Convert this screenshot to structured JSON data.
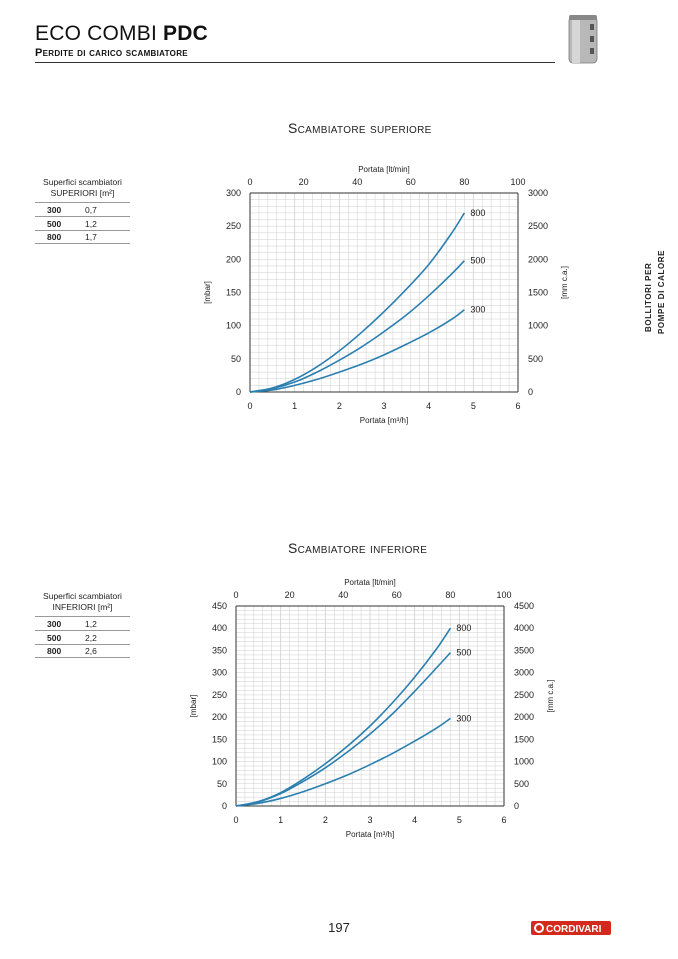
{
  "header": {
    "title_main": "ECO COMBI",
    "title_bold": "PDC",
    "subtitle": "Perdite di carico scambiatore"
  },
  "side_tab": {
    "line1": "BOLLITORI PER",
    "line2": "POMPE DI CALORE"
  },
  "legend_upper": {
    "head_line1": "Superfici scambiatori",
    "head_line2": "SUPERIORI [m²]",
    "rows": [
      {
        "model": "300",
        "area": "0,7"
      },
      {
        "model": "500",
        "area": "1,2"
      },
      {
        "model": "800",
        "area": "1,7"
      }
    ]
  },
  "legend_lower": {
    "head_line1": "Superfici scambiatori",
    "head_line2": "INFERIORI [m²]",
    "rows": [
      {
        "model": "300",
        "area": "1,2"
      },
      {
        "model": "500",
        "area": "2,2"
      },
      {
        "model": "800",
        "area": "2,6"
      }
    ]
  },
  "chart_data": [
    {
      "type": "line",
      "title": "Scambiatore superiore",
      "xlabel": "Portata [m³/h]",
      "x2label": "Portata [lt/min]",
      "ylabel": "[mbar]",
      "y2label": "[mm c.a.]",
      "xlim": [
        0,
        6
      ],
      "ylim": [
        0,
        300
      ],
      "x_ticks": [
        0,
        1,
        2,
        3,
        4,
        5,
        6
      ],
      "x2_ticks": [
        0,
        20,
        40,
        60,
        80,
        100
      ],
      "y_ticks": [
        0,
        50,
        100,
        150,
        200,
        250,
        300
      ],
      "y2_ticks": [
        0,
        500,
        1000,
        1500,
        2000,
        2500,
        3000
      ],
      "grid": true,
      "series": [
        {
          "name": "800",
          "x": [
            0,
            0.5,
            1,
            1.5,
            2,
            2.5,
            3,
            3.5,
            4,
            4.5,
            4.8
          ],
          "y": [
            0,
            6,
            19,
            38,
            62,
            90,
            121,
            155,
            192,
            238,
            270
          ]
        },
        {
          "name": "500",
          "x": [
            0,
            0.5,
            1,
            1.5,
            2,
            2.5,
            3,
            3.5,
            4,
            4.5,
            4.8
          ],
          "y": [
            0,
            5,
            15,
            30,
            48,
            68,
            91,
            116,
            145,
            177,
            198
          ]
        },
        {
          "name": "300",
          "x": [
            0,
            0.5,
            1,
            1.5,
            2,
            2.5,
            3,
            3.5,
            4,
            4.5,
            4.8
          ],
          "y": [
            0,
            3,
            10,
            19,
            30,
            42,
            56,
            72,
            89,
            109,
            124
          ]
        }
      ]
    },
    {
      "type": "line",
      "title": "Scambiatore inferiore",
      "xlabel": "Portata [m³/h]",
      "x2label": "Portata [lt/min]",
      "ylabel": "[mbar]",
      "y2label": "[mm c.a.]",
      "xlim": [
        0,
        6
      ],
      "ylim": [
        0,
        450
      ],
      "x_ticks": [
        0,
        1,
        2,
        3,
        4,
        5,
        6
      ],
      "x2_ticks": [
        0,
        20,
        40,
        60,
        80,
        100
      ],
      "y_ticks": [
        0,
        50,
        100,
        150,
        200,
        250,
        300,
        350,
        400,
        450
      ],
      "y2_ticks": [
        0,
        500,
        1000,
        1500,
        2000,
        2500,
        3000,
        3500,
        4000,
        4500
      ],
      "grid": true,
      "series": [
        {
          "name": "800",
          "x": [
            0,
            0.5,
            1,
            1.5,
            2,
            2.5,
            3,
            3.5,
            4,
            4.5,
            4.8
          ],
          "y": [
            0,
            10,
            30,
            60,
            95,
            135,
            180,
            232,
            290,
            355,
            400
          ]
        },
        {
          "name": "500",
          "x": [
            0,
            0.5,
            1,
            1.5,
            2,
            2.5,
            3,
            3.5,
            4,
            4.5,
            4.8
          ],
          "y": [
            0,
            9,
            28,
            55,
            86,
            122,
            162,
            207,
            258,
            312,
            345
          ]
        },
        {
          "name": "300",
          "x": [
            0,
            0.5,
            1,
            1.5,
            2,
            2.5,
            3,
            3.5,
            4,
            4.5,
            4.8
          ],
          "y": [
            0,
            6,
            17,
            32,
            50,
            70,
            93,
            118,
            146,
            176,
            197
          ]
        }
      ]
    }
  ],
  "colors": {
    "curve": "#2a7fb0",
    "grid": "#cfcfcf",
    "logo_red": "#d42a1e"
  },
  "footer": {
    "page_number": "197",
    "logo_text": "CORDIVARI"
  }
}
